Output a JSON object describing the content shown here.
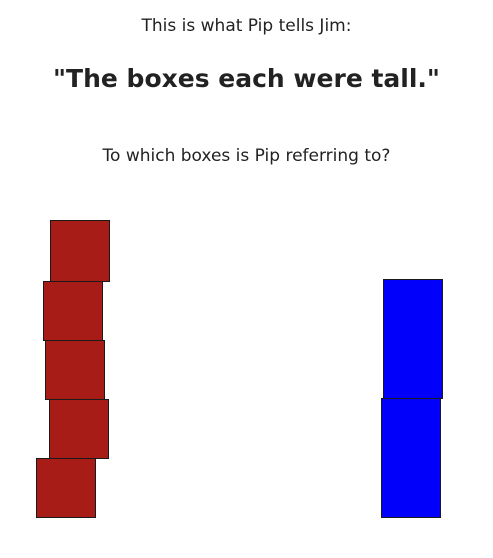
{
  "prompt": {
    "intro": "This is what Pip tells Jim:",
    "quote": "\"The boxes each were tall.\"",
    "question": "To which boxes is Pip referring to?"
  },
  "stacks": {
    "left": {
      "color": "#a81c17",
      "count": 5
    },
    "right": {
      "color": "#0000fb",
      "count": 2
    }
  }
}
